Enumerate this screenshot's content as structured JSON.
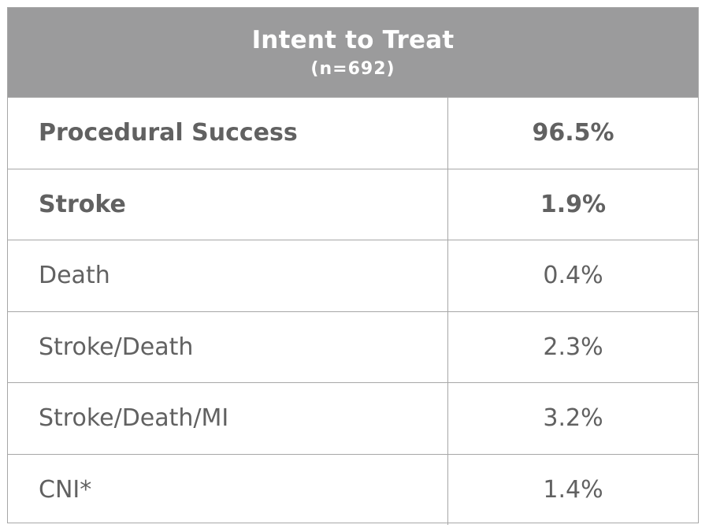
{
  "header": {
    "title": "Intent to Treat",
    "subtitle": "(n=692)"
  },
  "rows": [
    {
      "label": "Procedural Success",
      "value": "96.5%",
      "bold": true
    },
    {
      "label": "Stroke",
      "value": "1.9%",
      "bold": true
    },
    {
      "label": "Death",
      "value": "0.4%",
      "bold": false
    },
    {
      "label": "Stroke/Death",
      "value": "2.3%",
      "bold": false
    },
    {
      "label": "Stroke/Death/MI",
      "value": "3.2%",
      "bold": false
    },
    {
      "label": "CNI*",
      "value": "1.4%",
      "bold": false
    }
  ],
  "colors": {
    "header_background": "#9b9b9c",
    "header_text": "#ffffff",
    "body_text": "#616161",
    "grid_lines": "#a7a7a7"
  }
}
